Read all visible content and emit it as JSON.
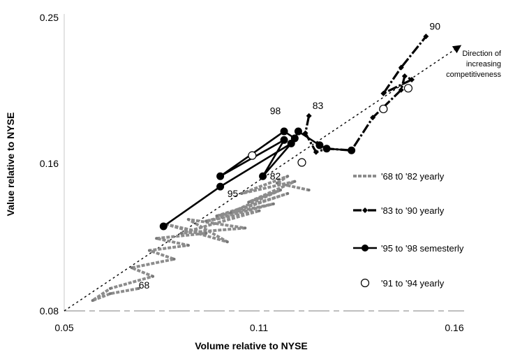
{
  "chart_data": {
    "type": "line",
    "xlabel": "Volume relative to NYSE",
    "ylabel": "Value relative to NYSE",
    "xlim": [
      0.05,
      0.16
    ],
    "ylim": [
      0.08,
      0.25
    ],
    "xticks": [
      "0.05",
      "0.11",
      "0.16"
    ],
    "yticks": [
      "0.08",
      "0.16",
      "0.25"
    ],
    "annotation": "Direction of increasing competitiveness",
    "trend_line": {
      "x": [
        0.05,
        0.162
      ],
      "y": [
        0.08,
        0.234
      ]
    },
    "legend_position": "right",
    "series": [
      {
        "name": "'68 t0 '82 yearly",
        "style": "gray-dashed",
        "color": "#8c8c8c",
        "x": [
          0.071,
          0.063,
          0.058,
          0.063,
          0.075,
          0.069,
          0.081,
          0.074,
          0.085,
          0.076,
          0.09,
          0.079,
          0.096,
          0.085,
          0.101,
          0.083,
          0.105,
          0.09,
          0.109,
          0.093,
          0.113,
          0.097,
          0.111,
          0.102,
          0.115,
          0.1,
          0.113,
          0.11,
          0.119
        ],
        "y": [
          0.093,
          0.09,
          0.086,
          0.093,
          0.1,
          0.105,
          0.11,
          0.115,
          0.118,
          0.122,
          0.125,
          0.13,
          0.12,
          0.133,
          0.128,
          0.125,
          0.138,
          0.132,
          0.142,
          0.135,
          0.148,
          0.137,
          0.15,
          0.143,
          0.155,
          0.148,
          0.158,
          0.154,
          0.15
        ]
      },
      {
        "name": "'83 to '90 yearly",
        "style": "black-dash-dot-diamond",
        "color": "#000000",
        "x": [
          0.119,
          0.118,
          0.121,
          0.124,
          0.131,
          0.137,
          0.145,
          0.146,
          0.148,
          0.14,
          0.145,
          0.152
        ],
        "y": [
          0.193,
          0.183,
          0.172,
          0.174,
          0.173,
          0.192,
          0.208,
          0.216,
          0.214,
          0.206,
          0.221,
          0.239
        ]
      },
      {
        "name": "'95 to '98 semesterly",
        "style": "black-solid-circle",
        "color": "#000000",
        "x": [
          0.078,
          0.094,
          0.114,
          0.106,
          0.112,
          0.094,
          0.112,
          0.115,
          0.116,
          0.122,
          0.124,
          0.131
        ],
        "y": [
          0.129,
          0.152,
          0.177,
          0.158,
          0.179,
          0.158,
          0.184,
          0.18,
          0.184,
          0.176,
          0.174,
          0.173
        ]
      },
      {
        "name": "'91 to '94 yearly",
        "style": "open-circle",
        "color": "#000000",
        "x": [
          0.103,
          0.117,
          0.14,
          0.147
        ],
        "y": [
          0.17,
          0.166,
          0.197,
          0.209
        ]
      }
    ],
    "point_labels": [
      {
        "text": "68",
        "x": 0.071,
        "y": 0.093
      },
      {
        "text": "82",
        "x": 0.108,
        "y": 0.156
      },
      {
        "text": "83",
        "x": 0.12,
        "y": 0.197
      },
      {
        "text": "90",
        "x": 0.153,
        "y": 0.243
      },
      {
        "text": "95",
        "x": 0.096,
        "y": 0.146
      },
      {
        "text": "98",
        "x": 0.108,
        "y": 0.194
      }
    ]
  }
}
